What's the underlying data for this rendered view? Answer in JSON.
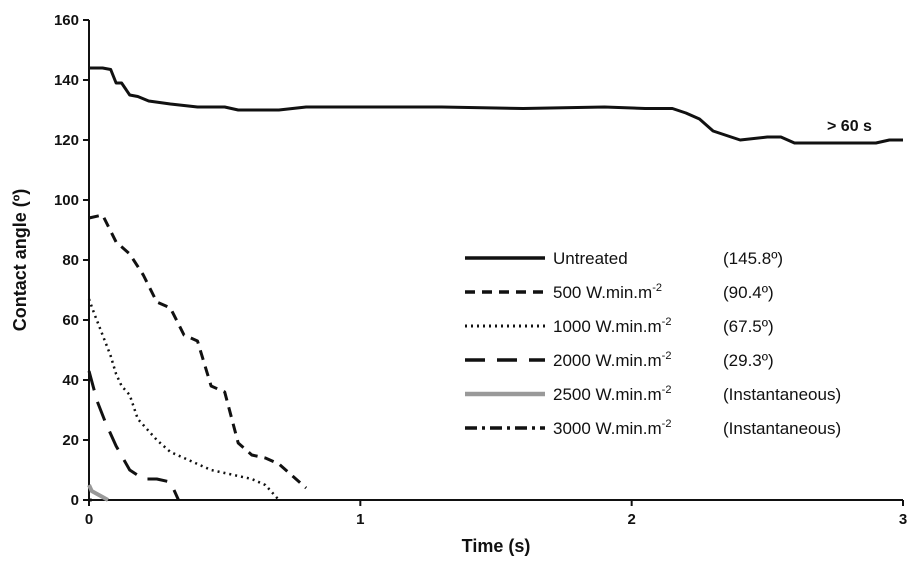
{
  "chart_data": {
    "type": "line",
    "xlabel": "Time (s)",
    "ylabel": "Contact angle (º)",
    "xlim": [
      0,
      3
    ],
    "ylim": [
      0,
      160
    ],
    "xticks": [
      "0",
      "1",
      "2",
      "3"
    ],
    "yticks": [
      "0",
      "20",
      "40",
      "60",
      "80",
      "100",
      "120",
      "140",
      "160"
    ],
    "grid": false,
    "legend_position": "right-middle",
    "annotation": "> 60 s",
    "series": [
      {
        "name": "Untreated",
        "legend_value": "(145.8º)",
        "style": "solid",
        "color": "#111111",
        "x": [
          0,
          0.02,
          0.05,
          0.08,
          0.1,
          0.12,
          0.15,
          0.18,
          0.22,
          0.3,
          0.4,
          0.5,
          0.55,
          0.7,
          0.8,
          1.0,
          1.3,
          1.6,
          1.9,
          2.05,
          2.15,
          2.2,
          2.25,
          2.3,
          2.35,
          2.4,
          2.5,
          2.55,
          2.6,
          2.7,
          2.8,
          2.9,
          2.95,
          3.0
        ],
        "y": [
          144,
          144,
          144,
          143.5,
          139,
          139,
          135,
          134.5,
          133,
          132,
          131,
          131,
          130,
          130,
          131,
          131,
          131,
          130.5,
          131,
          130.5,
          130.5,
          129,
          127,
          123,
          121.5,
          120,
          121,
          121,
          119,
          119,
          119,
          119,
          120,
          120
        ]
      },
      {
        "name": "500 W.min.m-2",
        "legend_value": "(90.4º)",
        "style": "dashed",
        "color": "#111111",
        "x": [
          0,
          0.05,
          0.1,
          0.15,
          0.2,
          0.25,
          0.3,
          0.35,
          0.4,
          0.45,
          0.5,
          0.55,
          0.6,
          0.65,
          0.7,
          0.75,
          0.8
        ],
        "y": [
          94,
          95,
          86,
          82,
          75,
          66,
          64,
          55,
          53,
          38,
          36,
          19,
          15,
          14,
          12,
          8,
          4
        ]
      },
      {
        "name": "1000 W.min.m-2",
        "legend_value": "(67.5º)",
        "style": "dotted",
        "color": "#111111",
        "x": [
          0,
          0.02,
          0.05,
          0.08,
          0.1,
          0.12,
          0.15,
          0.18,
          0.2,
          0.25,
          0.3,
          0.35,
          0.4,
          0.45,
          0.5,
          0.55,
          0.6,
          0.65,
          0.7
        ],
        "y": [
          67,
          62,
          55,
          48,
          42,
          38,
          35,
          27,
          25,
          20,
          16,
          14,
          12,
          10,
          9,
          8,
          7,
          5,
          0
        ]
      },
      {
        "name": "2000 W.min.m-2",
        "legend_value": "(29.3º)",
        "style": "long-dash",
        "color": "#111111",
        "x": [
          0,
          0.03,
          0.06,
          0.1,
          0.15,
          0.2,
          0.25,
          0.3,
          0.33
        ],
        "y": [
          43,
          33,
          26,
          18,
          10,
          7,
          7,
          6,
          0
        ]
      },
      {
        "name": "2500 W.min.m-2",
        "legend_value": "(Instantaneous)",
        "style": "solid-gray",
        "color": "#999999",
        "x": [
          0,
          0.01,
          0.03,
          0.05,
          0.07
        ],
        "y": [
          5,
          3,
          2,
          1,
          0
        ]
      },
      {
        "name": "3000 W.min.m-2",
        "legend_value": "(Instantaneous)",
        "style": "dash-dot",
        "color": "#111111",
        "x": [
          0,
          0.01
        ],
        "y": [
          0,
          0
        ]
      }
    ]
  }
}
